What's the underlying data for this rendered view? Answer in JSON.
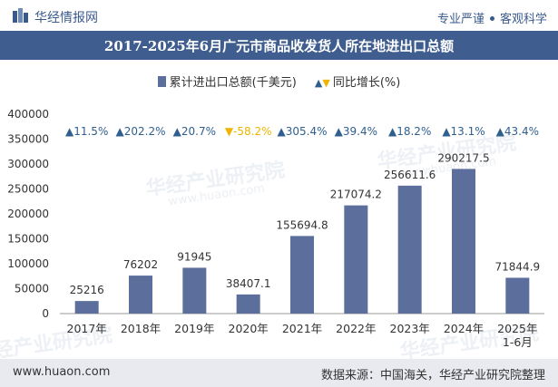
{
  "header": {
    "brand": "华经情报网",
    "tag_left": "专业严谨",
    "tag_right": "客观科学"
  },
  "footer": {
    "site": "www.huaon.com",
    "source": "数据来源：中国海关，华经产业研究院整理"
  },
  "watermark": {
    "text": "华经产业研究院",
    "url": "www.huaon.com"
  },
  "colors": {
    "bar": "#5b6e9c",
    "up": "#2f5f8f",
    "down": "#f0b400",
    "title_bg": "#3f5d8e"
  },
  "chart_data": {
    "type": "bar",
    "title": "2017-2025年6月广元市商品收发货人所在地进出口总额",
    "legend": [
      "累计进出口总额(千美元)",
      "同比增长(%)"
    ],
    "categories": [
      "2017年",
      "2018年",
      "2019年",
      "2020年",
      "2021年",
      "2022年",
      "2023年",
      "2024年",
      "2025年\n1-6月"
    ],
    "values": [
      25216,
      76202,
      91945,
      38407.1,
      155694.8,
      217074.2,
      256611.6,
      290217.5,
      71844.9
    ],
    "value_labels": [
      "25216",
      "76202",
      "91945",
      "38407.1",
      "155694.8",
      "217074.2",
      "256611.6",
      "290217.5",
      "71844.9"
    ],
    "growth": [
      11.5,
      202.2,
      20.7,
      -58.2,
      305.4,
      39.4,
      18.2,
      13.1,
      43.4
    ],
    "growth_labels": [
      "11.5%",
      "202.2%",
      "20.7%",
      "-58.2%",
      "305.4%",
      "39.4%",
      "18.2%",
      "13.1%",
      "43.4%"
    ],
    "ylim": [
      0,
      400000
    ],
    "yticks": [
      0,
      50000,
      100000,
      150000,
      200000,
      250000,
      300000,
      350000,
      400000
    ],
    "ytick_labels": [
      "0",
      "50000",
      "100000",
      "150000",
      "200000",
      "250000",
      "300000",
      "350000",
      "400000"
    ]
  }
}
